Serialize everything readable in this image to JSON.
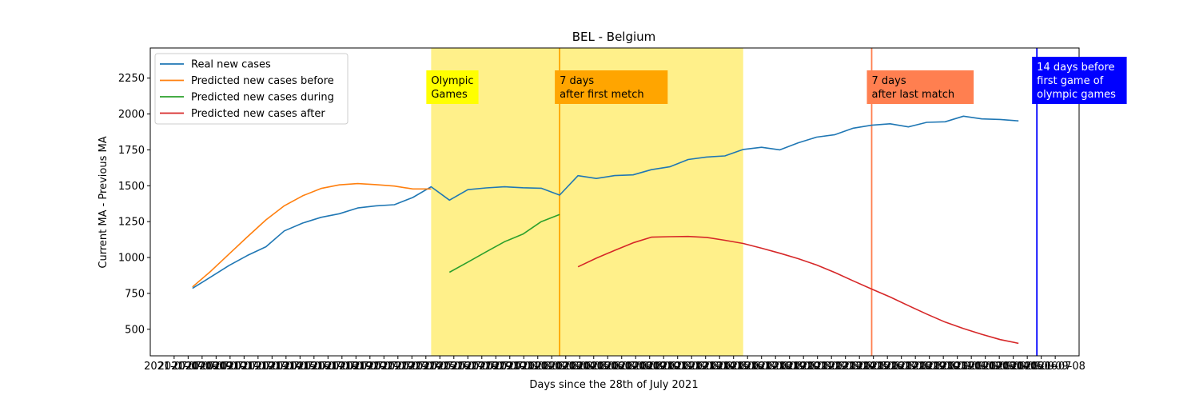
{
  "chart_data": {
    "type": "line",
    "title": "BEL - Belgium",
    "xlabel": "Days since the 28th of July 2021",
    "ylabel": "Current MA - Previous MA",
    "ylim": [
      315,
      2460
    ],
    "xlim": [
      -2.3,
      48.3
    ],
    "yticks": [
      500,
      750,
      1000,
      1250,
      1500,
      1750,
      2000,
      2250
    ],
    "xtick_first": "2021-07-07",
    "xtick_last": "2021-09-08",
    "legend_position": "upper-left",
    "grid": false,
    "series": [
      {
        "name": "Real new cases",
        "color": "#1f77b4",
        "x": [
          0,
          1,
          2,
          3,
          4,
          5,
          6,
          7,
          8,
          9,
          10,
          11,
          12,
          13,
          14,
          15,
          16,
          17,
          18,
          19,
          20,
          21,
          22,
          23,
          24,
          25,
          26,
          27,
          28,
          29,
          30,
          31,
          32,
          33,
          34,
          35,
          36,
          37,
          38,
          39,
          40,
          41,
          42,
          43,
          44,
          45
        ],
        "y": [
          785,
          865,
          945,
          1015,
          1075,
          1185,
          1240,
          1280,
          1305,
          1345,
          1360,
          1368,
          1418,
          1493,
          1400,
          1473,
          1485,
          1493,
          1486,
          1483,
          1435,
          1570,
          1551,
          1571,
          1576,
          1612,
          1632,
          1683,
          1700,
          1708,
          1753,
          1768,
          1750,
          1799,
          1839,
          1856,
          1901,
          1922,
          1932,
          1910,
          1942,
          1946,
          1985,
          1966,
          1962,
          1952
        ]
      },
      {
        "name": "Predicted new cases before",
        "color": "#ff7f0e",
        "x": [
          0,
          1,
          2,
          3,
          4,
          5,
          6,
          7,
          8,
          9,
          10,
          11,
          12,
          13
        ],
        "y": [
          795,
          905,
          1025,
          1145,
          1262,
          1360,
          1430,
          1481,
          1506,
          1515,
          1508,
          1498,
          1478,
          1478
        ]
      },
      {
        "name": "Predicted new cases during",
        "color": "#2ca02c",
        "x": [
          14,
          15,
          16,
          17,
          18,
          19,
          20
        ],
        "y": [
          897,
          968,
          1040,
          1110,
          1163,
          1250,
          1300
        ]
      },
      {
        "name": "Predicted new cases after",
        "color": "#d62728",
        "x": [
          21,
          22,
          23,
          24,
          25,
          26,
          27,
          28,
          29,
          30,
          31,
          32,
          33,
          34,
          35,
          36,
          37,
          38,
          39,
          40,
          41,
          42,
          43,
          44,
          45
        ],
        "y": [
          935,
          995,
          1050,
          1102,
          1142,
          1145,
          1147,
          1140,
          1120,
          1098,
          1065,
          1030,
          992,
          948,
          895,
          837,
          780,
          725,
          665,
          606,
          550,
          505,
          465,
          428,
          402
        ]
      }
    ],
    "shaded_region": {
      "x_start": 13,
      "x_end": 30,
      "color": "#fff08a"
    },
    "vlines": [
      {
        "x": 20,
        "color": "#ffa500"
      },
      {
        "x": 37,
        "color": "#ff7f50"
      },
      {
        "x": 46,
        "color": "#0000ff"
      }
    ],
    "annotations": [
      {
        "lines": [
          "Olympic",
          "Games"
        ],
        "x": 13,
        "y": 2070,
        "bg": "#ffff00",
        "fg": "#000000"
      },
      {
        "lines": [
          "7 days",
          "after first metch"
        ],
        "x": 20,
        "y": 2070,
        "bg": "#ffa500",
        "fg": "#000000"
      },
      {
        "lines": [
          "7 days",
          "after last match"
        ],
        "x": 37,
        "y": 2070,
        "bg": "#ff7f50",
        "fg": "#000000"
      },
      {
        "lines": [
          "14 days before",
          "first game of",
          "olympic games"
        ],
        "x": 46,
        "y": 2070,
        "bg": "#0000ff",
        "fg": "#ffffff"
      }
    ]
  }
}
